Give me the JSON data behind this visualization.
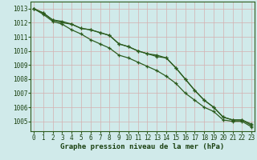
{
  "x": [
    0,
    1,
    2,
    3,
    4,
    5,
    6,
    7,
    8,
    9,
    10,
    11,
    12,
    13,
    14,
    15,
    16,
    17,
    18,
    19,
    20,
    21,
    22,
    23
  ],
  "line1": [
    1013.0,
    1012.7,
    1012.2,
    1012.1,
    1011.9,
    1011.6,
    1011.5,
    1011.3,
    1011.1,
    1010.5,
    1010.3,
    1010.0,
    1009.8,
    1009.6,
    1009.5,
    1008.8,
    1008.0,
    1007.2,
    1006.5,
    1006.0,
    1005.3,
    1005.1,
    1005.1,
    1004.8
  ],
  "line2": [
    1013.0,
    1012.7,
    1012.2,
    1012.0,
    1011.9,
    1011.6,
    1011.5,
    1011.3,
    1011.1,
    1010.5,
    1010.3,
    1010.0,
    1009.8,
    1009.7,
    1009.5,
    1008.8,
    1008.0,
    1007.2,
    1006.5,
    1006.0,
    1005.3,
    1005.1,
    1005.1,
    1004.7
  ],
  "line3": [
    1013.0,
    1012.6,
    1012.1,
    1011.9,
    1011.5,
    1011.2,
    1010.8,
    1010.5,
    1010.2,
    1009.7,
    1009.5,
    1009.2,
    1008.9,
    1008.6,
    1008.2,
    1007.7,
    1007.0,
    1006.5,
    1006.0,
    1005.7,
    1005.1,
    1005.0,
    1005.0,
    1004.6
  ],
  "line_color": "#2d5c1e",
  "bg_color": "#d0eaea",
  "grid_color": "#c0c8c0",
  "text_color": "#1a4010",
  "xlabel": "Graphe pression niveau de la mer (hPa)",
  "ylim": [
    1004.3,
    1013.5
  ],
  "yticks": [
    1005,
    1006,
    1007,
    1008,
    1009,
    1010,
    1011,
    1012,
    1013
  ],
  "xticks": [
    0,
    1,
    2,
    3,
    4,
    5,
    6,
    7,
    8,
    9,
    10,
    11,
    12,
    13,
    14,
    15,
    16,
    17,
    18,
    19,
    20,
    21,
    22,
    23
  ]
}
